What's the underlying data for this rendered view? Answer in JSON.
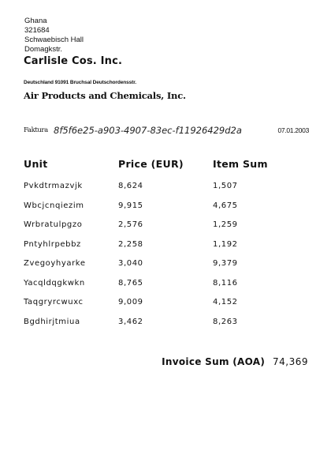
{
  "sender": {
    "country": "Ghana",
    "postal_code": "321684",
    "city": "Schwaebisch Hall",
    "street": "Domagkstr."
  },
  "company_name": "Carlisle Cos. Inc.",
  "recipient": {
    "address_line": "Deutschland 91091 Bruchsal Deutschordensstr.",
    "name": "Air Products and Chemicals, Inc."
  },
  "invoice": {
    "label": "Faktura",
    "id": "8f5f6e25-a903-4907-83ec-f11926429d2a",
    "date": "07.01.2003"
  },
  "table": {
    "headers": [
      "Unit",
      "Price (EUR)",
      "Item Sum"
    ],
    "rows": [
      [
        "Pvkdtrmazvjk",
        "8,624",
        "1,507"
      ],
      [
        "Wbcjcnqiezim",
        "9,915",
        "4,675"
      ],
      [
        "Wrbratulpgzo",
        "2,576",
        "1,259"
      ],
      [
        "Pntyhlrpebbz",
        "2,258",
        "1,192"
      ],
      [
        "Zvegoyhyarke",
        "3,040",
        "9,379"
      ],
      [
        "Yacqldqgkwkn",
        "8,765",
        "8,116"
      ],
      [
        "Taqgryrcwuxc",
        "9,009",
        "4,152"
      ],
      [
        "Bgdhirjtmiua",
        "3,462",
        "8,263"
      ]
    ]
  },
  "total": {
    "label": "Invoice Sum (AOA)",
    "value": "74,369"
  }
}
